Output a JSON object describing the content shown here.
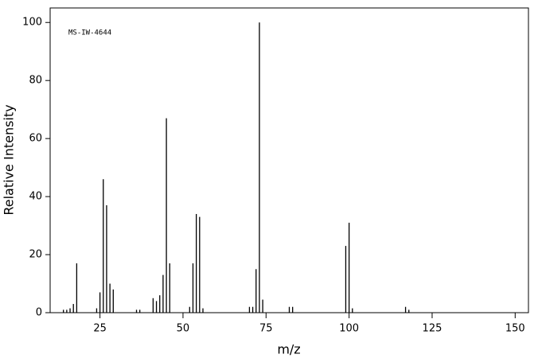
{
  "chart_data": {
    "type": "stem",
    "annotation": "MS-IW-4644",
    "xlabel": "m/z",
    "ylabel": "Relative Intensity",
    "x": [
      14,
      15,
      16,
      17,
      18,
      24,
      25,
      26,
      27,
      28,
      29,
      36,
      37,
      41,
      42,
      43,
      44,
      45,
      46,
      52,
      53,
      54,
      55,
      56,
      70,
      71,
      72,
      73,
      74,
      82,
      83,
      99,
      100,
      101,
      117,
      118
    ],
    "values": [
      1,
      1,
      1.5,
      3,
      17,
      1.5,
      7,
      46,
      37,
      10,
      8,
      1,
      1,
      5,
      4,
      6,
      13,
      67,
      17,
      2,
      17,
      34,
      33,
      1.5,
      2,
      2,
      15,
      100,
      4.5,
      2,
      2,
      23,
      31,
      1.5,
      2,
      1
    ],
    "color": "#000000",
    "xlim": [
      10,
      154
    ],
    "ylim": [
      0,
      105
    ],
    "xticks": [
      25,
      50,
      75,
      100,
      125,
      150
    ],
    "yticks": [
      0,
      20,
      40,
      60,
      80,
      100
    ]
  }
}
